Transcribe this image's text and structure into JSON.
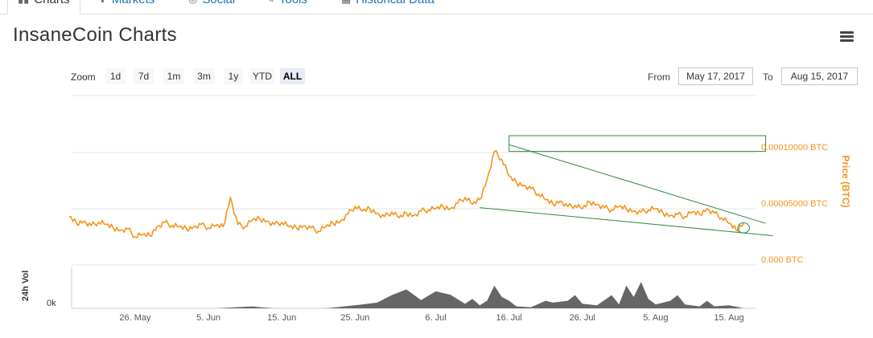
{
  "tabs": [
    {
      "label": "Charts",
      "icon": "bar-chart-icon",
      "active": true
    },
    {
      "label": "Markets",
      "icon": "cart-icon",
      "active": false
    },
    {
      "label": "Social",
      "icon": "globe-icon",
      "active": false
    },
    {
      "label": "Tools",
      "icon": "wrench-icon",
      "active": false
    },
    {
      "label": "Historical Data",
      "icon": "calendar-icon",
      "active": false
    }
  ],
  "page": {
    "title": "InsaneCoin Charts",
    "menu_icon": "hamburger-menu-icon"
  },
  "zoom": {
    "label": "Zoom",
    "options": [
      "1d",
      "7d",
      "1m",
      "3m",
      "1y",
      "YTD",
      "ALL"
    ],
    "selected": "ALL"
  },
  "range": {
    "from_label": "From",
    "from_value": "May 17, 2017",
    "to_label": "To",
    "to_value": "Aug 15, 2017"
  },
  "colors": {
    "price_line": "#f7931a",
    "volume_area": "#666666",
    "annotation": "#2e8b3e",
    "grid": "#e6e6e6",
    "axis_text": "#f7931a"
  },
  "chart_data": {
    "type": "line",
    "y_axis": {
      "title": "Price (BTC)",
      "ticks": [
        {
          "label": "0.00010000 BTC",
          "value": 0.0001
        },
        {
          "label": "0.00005000 BTC",
          "value": 5e-05
        },
        {
          "label": "0.000 BTC",
          "value": 0
        }
      ],
      "range": [
        0,
        0.0001
      ]
    },
    "volume_axis": {
      "title": "24h Vol",
      "tick": "0k"
    },
    "x_axis": {
      "ticks": [
        {
          "label": "26. May",
          "day": 9
        },
        {
          "label": "5. Jun",
          "day": 19
        },
        {
          "label": "15. Jun",
          "day": 29
        },
        {
          "label": "25. Jun",
          "day": 39
        },
        {
          "label": "6. Jul",
          "day": 50
        },
        {
          "label": "16. Jul",
          "day": 60
        },
        {
          "label": "26. Jul",
          "day": 70
        },
        {
          "label": "5. Aug",
          "day": 80
        },
        {
          "label": "15. Aug",
          "day": 90
        }
      ],
      "range_days": [
        0,
        90
      ]
    },
    "series": [
      {
        "values": [
          [
            0,
            4.3e-05
          ],
          [
            1,
            3.7e-05
          ],
          [
            2,
            3.9e-05
          ],
          [
            3,
            3.5e-05
          ],
          [
            4,
            3.8e-05
          ],
          [
            5,
            3.6e-05
          ],
          [
            6,
            3.3e-05
          ],
          [
            7,
            3.1e-05
          ],
          [
            8,
            3.2e-05
          ],
          [
            9,
            2.5e-05
          ],
          [
            10,
            2.7e-05
          ],
          [
            11,
            2.6e-05
          ],
          [
            12,
            3.4e-05
          ],
          [
            13,
            3.8e-05
          ],
          [
            14,
            3.5e-05
          ],
          [
            15,
            3.4e-05
          ],
          [
            16,
            3.2e-05
          ],
          [
            17,
            3.4e-05
          ],
          [
            18,
            3.6e-05
          ],
          [
            19,
            3.3e-05
          ],
          [
            20,
            3.5e-05
          ],
          [
            21,
            3.4e-05
          ],
          [
            22,
            6e-05
          ],
          [
            23,
            3.6e-05
          ],
          [
            24,
            3.4e-05
          ],
          [
            25,
            4e-05
          ],
          [
            26,
            4.1e-05
          ],
          [
            27,
            3.9e-05
          ],
          [
            28,
            3.6e-05
          ],
          [
            29,
            3.8e-05
          ],
          [
            30,
            3.4e-05
          ],
          [
            31,
            3.3e-05
          ],
          [
            32,
            3.5e-05
          ],
          [
            33,
            3.3e-05
          ],
          [
            34,
            3e-05
          ],
          [
            35,
            3.4e-05
          ],
          [
            36,
            3.7e-05
          ],
          [
            37,
            3.9e-05
          ],
          [
            38,
            4.5e-05
          ],
          [
            39,
            5.2e-05
          ],
          [
            40,
            4.8e-05
          ],
          [
            41,
            5e-05
          ],
          [
            42,
            4.6e-05
          ],
          [
            43,
            4.3e-05
          ],
          [
            44,
            4.7e-05
          ],
          [
            45,
            4.2e-05
          ],
          [
            46,
            4.6e-05
          ],
          [
            47,
            4.4e-05
          ],
          [
            48,
            4.8e-05
          ],
          [
            49,
            4.9e-05
          ],
          [
            50,
            5e-05
          ],
          [
            51,
            5.2e-05
          ],
          [
            52,
            5e-05
          ],
          [
            53,
            5.5e-05
          ],
          [
            54,
            6e-05
          ],
          [
            55,
            5.4e-05
          ],
          [
            56,
            5.8e-05
          ],
          [
            57,
            7.6e-05
          ],
          [
            58,
            0.000101
          ],
          [
            59,
            9.4e-05
          ],
          [
            60,
            7.9e-05
          ],
          [
            61,
            7.3e-05
          ],
          [
            62,
            7.1e-05
          ],
          [
            63,
            6.8e-05
          ],
          [
            64,
            6.3e-05
          ],
          [
            65,
            5.8e-05
          ],
          [
            66,
            5.4e-05
          ],
          [
            67,
            5.7e-05
          ],
          [
            68,
            5.2e-05
          ],
          [
            69,
            5.3e-05
          ],
          [
            70,
            5e-05
          ],
          [
            71,
            5.6e-05
          ],
          [
            72,
            5.4e-05
          ],
          [
            73,
            5.1e-05
          ],
          [
            74,
            4.9e-05
          ],
          [
            75,
            5.2e-05
          ],
          [
            76,
            5e-05
          ],
          [
            77,
            4.8e-05
          ],
          [
            78,
            4.7e-05
          ],
          [
            79,
            4.9e-05
          ],
          [
            80,
            5e-05
          ],
          [
            81,
            4.6e-05
          ],
          [
            82,
            4.4e-05
          ],
          [
            83,
            4.5e-05
          ],
          [
            84,
            4.3e-05
          ],
          [
            85,
            4.7e-05
          ],
          [
            86,
            4.5e-05
          ],
          [
            87,
            5e-05
          ],
          [
            88,
            4.6e-05
          ],
          [
            89,
            4.2e-05
          ],
          [
            90,
            3.7e-05
          ],
          [
            91,
            3.1e-05
          ],
          [
            92,
            3.7e-05
          ]
        ]
      }
    ],
    "volume": [
      [
        0,
        0
      ],
      [
        20,
        0
      ],
      [
        25,
        0.05
      ],
      [
        26,
        0.03
      ],
      [
        28,
        0
      ],
      [
        35,
        0
      ],
      [
        37,
        0.04
      ],
      [
        40,
        0.1
      ],
      [
        42,
        0.15
      ],
      [
        44,
        0.35
      ],
      [
        46,
        0.5
      ],
      [
        48,
        0.22
      ],
      [
        50,
        0.45
      ],
      [
        52,
        0.36
      ],
      [
        54,
        0.12
      ],
      [
        55,
        0.25
      ],
      [
        56,
        0.08
      ],
      [
        57,
        0.2
      ],
      [
        58,
        0.6
      ],
      [
        59,
        0.3
      ],
      [
        60,
        0.2
      ],
      [
        61,
        0.05
      ],
      [
        63,
        0.03
      ],
      [
        65,
        0.2
      ],
      [
        66,
        0.15
      ],
      [
        68,
        0.2
      ],
      [
        69,
        0.35
      ],
      [
        70,
        0.12
      ],
      [
        72,
        0.08
      ],
      [
        74,
        0.35
      ],
      [
        75,
        0.1
      ],
      [
        76,
        0.6
      ],
      [
        77,
        0.3
      ],
      [
        78,
        0.7
      ],
      [
        79,
        0.25
      ],
      [
        80,
        0.1
      ],
      [
        82,
        0.2
      ],
      [
        83,
        0.35
      ],
      [
        84,
        0.1
      ],
      [
        86,
        0.05
      ],
      [
        87,
        0.2
      ],
      [
        88,
        0.05
      ],
      [
        90,
        0.08
      ],
      [
        92,
        0
      ]
    ],
    "annotations": [
      {
        "type": "rectangle",
        "day_range": [
          60,
          95
        ],
        "value_range": [
          0.000101,
          0.000115
        ]
      },
      {
        "type": "trendline-upper",
        "points": [
          [
            60,
            0.000107
          ],
          [
            95,
            3.7e-05
          ]
        ]
      },
      {
        "type": "trendline-lower",
        "points": [
          [
            56,
            5.1e-05
          ],
          [
            96,
            2.6e-05
          ]
        ]
      },
      {
        "type": "ellipse",
        "center": [
          92,
          3.3e-05
        ],
        "radius_days": 0.8,
        "radius_value": 4.5e-06
      }
    ]
  }
}
